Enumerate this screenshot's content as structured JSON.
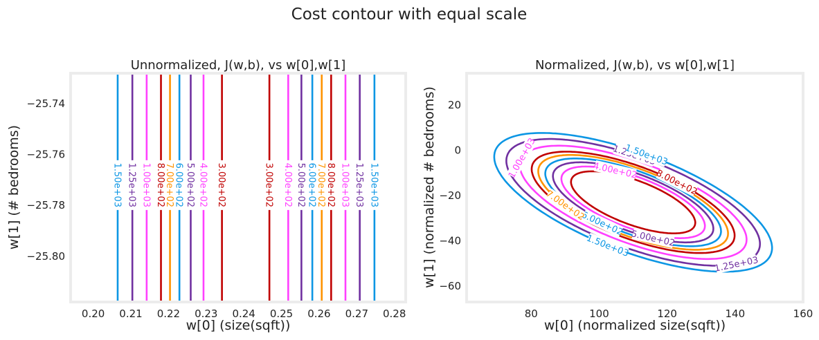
{
  "suptitle": "Cost contour with equal scale",
  "chart_data": [
    {
      "type": "contour",
      "title": "Unnormalized, J(w,b), vs w[0],w[1]",
      "xlabel": "w[0] (size(sqft))",
      "ylabel": "w[1] (# bedrooms)",
      "xlim": [
        0.194,
        0.283
      ],
      "ylim": [
        -25.818,
        -25.728
      ],
      "xticks": [
        "0.20",
        "0.21",
        "0.22",
        "0.23",
        "0.24",
        "0.25",
        "0.26",
        "0.27",
        "0.28"
      ],
      "xtick_values": [
        0.2,
        0.21,
        0.22,
        0.23,
        0.24,
        0.25,
        0.26,
        0.27,
        0.28
      ],
      "yticks": [
        "−25.80",
        "−25.78",
        "−25.76",
        "−25.74"
      ],
      "ytick_values": [
        -25.8,
        -25.78,
        -25.76,
        -25.74
      ],
      "label_y": -25.772,
      "lines": [
        {
          "x": 0.2065,
          "level": "1.50e+03",
          "color": "#0c96e4"
        },
        {
          "x": 0.2104,
          "level": "1.25e+03",
          "color": "#7030a0"
        },
        {
          "x": 0.2142,
          "level": "1.00e+03",
          "color": "#ff40ff"
        },
        {
          "x": 0.218,
          "level": "8.00e+02",
          "color": "#c00000"
        },
        {
          "x": 0.2204,
          "level": "7.00e+02",
          "color": "#ff9300"
        },
        {
          "x": 0.2229,
          "level": "6.00e+02",
          "color": "#0c96e4"
        },
        {
          "x": 0.2259,
          "level": "5.00e+02",
          "color": "#7030a0"
        },
        {
          "x": 0.2293,
          "level": "4.00e+02",
          "color": "#ff40ff"
        },
        {
          "x": 0.2342,
          "level": "3.00e+02",
          "color": "#c00000"
        },
        {
          "x": 0.2468,
          "level": "3.00e+02",
          "color": "#c00000"
        },
        {
          "x": 0.2518,
          "level": "4.00e+02",
          "color": "#ff40ff"
        },
        {
          "x": 0.2553,
          "level": "5.00e+02",
          "color": "#7030a0"
        },
        {
          "x": 0.2582,
          "level": "6.00e+02",
          "color": "#0c96e4"
        },
        {
          "x": 0.2607,
          "level": "7.00e+02",
          "color": "#ff9300"
        },
        {
          "x": 0.2632,
          "level": "8.00e+02",
          "color": "#c00000"
        },
        {
          "x": 0.267,
          "level": "1.00e+03",
          "color": "#ff40ff"
        },
        {
          "x": 0.2708,
          "level": "1.25e+03",
          "color": "#7030a0"
        },
        {
          "x": 0.2747,
          "level": "1.50e+03",
          "color": "#0c96e4"
        }
      ]
    },
    {
      "type": "contour",
      "title": "Normalized, J(w,b), vs w[0],w[1]",
      "xlabel": "w[0] (normalized size(sqft))",
      "ylabel": "w[1] (normalized # bedrooms)",
      "xlim": [
        61,
        160
      ],
      "ylim": [
        -67,
        34
      ],
      "xticks": [
        "80",
        "100",
        "120",
        "140",
        "160"
      ],
      "xtick_values": [
        80,
        100,
        120,
        140,
        160
      ],
      "yticks": [
        "−60",
        "−40",
        "−20",
        "0",
        "20"
      ],
      "ytick_values": [
        -60,
        -40,
        -20,
        0,
        20
      ],
      "center": [
        110,
        -23
      ],
      "rotation_deg": -33,
      "semi_axes_at_300": [
        21,
        9
      ],
      "base_level": 300,
      "levels": [
        {
          "level": 300,
          "label": "",
          "color": "#c00000"
        },
        {
          "level": 400,
          "label": "4.00e+02",
          "color": "#ff40ff",
          "label_angle": 120
        },
        {
          "level": 500,
          "label": "5.00e+02",
          "color": "#7030a0",
          "label_angle": -60
        },
        {
          "level": 600,
          "label": "6.00e+02",
          "color": "#0c96e4",
          "label_angle": -95
        },
        {
          "level": 700,
          "label": "7.00e+02",
          "color": "#ff9300",
          "label_angle": -120
        },
        {
          "level": 800,
          "label": "8.00e+02",
          "color": "#c00000",
          "label_angle": 80
        },
        {
          "level": 1000,
          "label": "1.00e+03",
          "color": "#ff40ff",
          "label_angle": -175
        },
        {
          "level": 1250,
          "label": "1.25e+03",
          "color": "#7030a0",
          "label_angle": -20
        },
        {
          "level": 1250,
          "label": "1.25e+03",
          "color": "#7030a0",
          "label_angle": 105
        },
        {
          "level": 1500,
          "label": "1.50e+03",
          "color": "#0c96e4",
          "label_angle": -85
        },
        {
          "level": 1500,
          "label": "1.50e+03",
          "color": "#0c96e4",
          "label_angle": 100
        }
      ]
    }
  ]
}
